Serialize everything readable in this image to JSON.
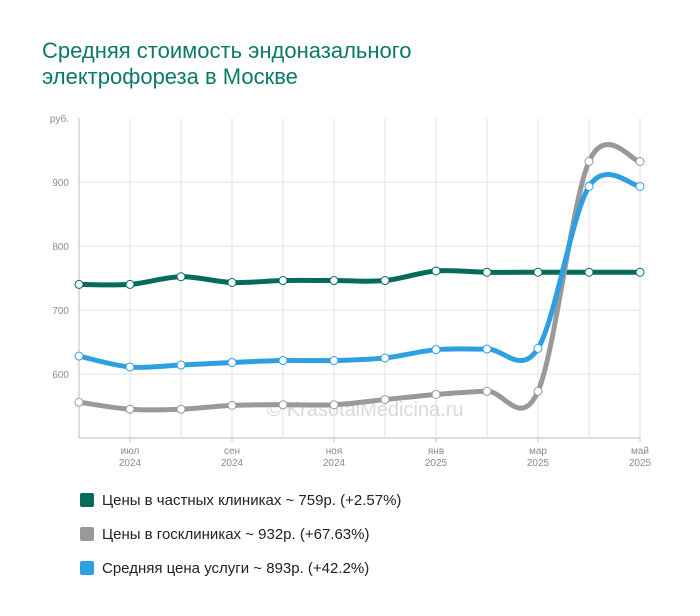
{
  "title_line1": "Средняя стоимость эндоназального",
  "title_line2": "электрофореза в Москве",
  "watermark": "© KrasotaiMedicina.ru",
  "chart_data": {
    "type": "line",
    "y_unit_label": "руб.",
    "ylim": [
      500,
      1000
    ],
    "yticks": [
      600,
      700,
      800,
      900
    ],
    "grid": true,
    "x": [
      "2024-06",
      "2024-07",
      "2024-08",
      "2024-09",
      "2024-10",
      "2024-11",
      "2024-12",
      "2025-01",
      "2025-02",
      "2025-03",
      "2025-04",
      "2025-05"
    ],
    "xtick_labels": [
      {
        "month": "июл",
        "year": "2024",
        "index": 1
      },
      {
        "month": "сен",
        "year": "2024",
        "index": 3
      },
      {
        "month": "ноя",
        "year": "2024",
        "index": 5
      },
      {
        "month": "янв",
        "year": "2025",
        "index": 7
      },
      {
        "month": "мар",
        "year": "2025",
        "index": 9
      },
      {
        "month": "май",
        "year": "2025",
        "index": 11
      }
    ],
    "series": [
      {
        "name": "Цены в частных клиниках",
        "color": "#076b5b",
        "values": [
          740,
          740,
          752,
          743,
          746,
          746,
          746,
          761,
          759,
          759,
          759,
          759
        ]
      },
      {
        "name": "Цены в госклиниках",
        "color": "#999999",
        "values": [
          556,
          545,
          545,
          551,
          552,
          552,
          560,
          568,
          573,
          573,
          932,
          932
        ]
      },
      {
        "name": "Средняя цена услуги",
        "color": "#2e9fe0",
        "values": [
          628,
          611,
          614,
          618,
          621,
          621,
          625,
          638,
          639,
          640,
          893,
          893
        ]
      }
    ]
  },
  "legend": [
    {
      "label": "Цены в частных клиниках ~ 759р. (+2.57%)",
      "color": "#076b5b"
    },
    {
      "label": "Цены в госклиниках ~ 932р. (+67.63%)",
      "color": "#999999"
    },
    {
      "label": "Средняя цена услуги ~ 893р. (+42.2%)",
      "color": "#2e9fe0"
    }
  ]
}
